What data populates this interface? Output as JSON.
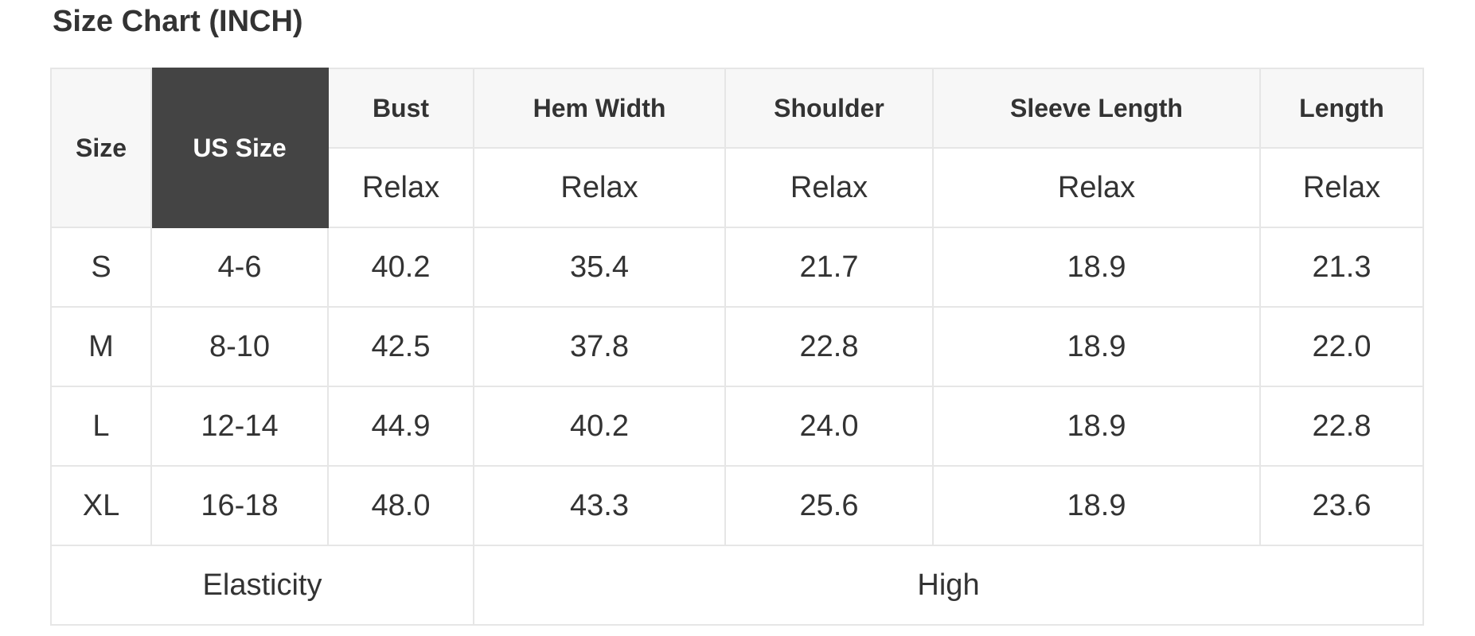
{
  "title": "Size Chart (INCH)",
  "header": {
    "size": "Size",
    "us_size": "US Size",
    "columns": [
      "Bust",
      "Hem Width",
      "Shoulder",
      "Sleeve Length",
      "Length"
    ],
    "sub": [
      "Relax",
      "Relax",
      "Relax",
      "Relax",
      "Relax"
    ]
  },
  "rows": [
    {
      "size": "S",
      "us": "4-6",
      "values": [
        "40.2",
        "35.4",
        "21.7",
        "18.9",
        "21.3"
      ]
    },
    {
      "size": "M",
      "us": "8-10",
      "values": [
        "42.5",
        "37.8",
        "22.8",
        "18.9",
        "22.0"
      ]
    },
    {
      "size": "L",
      "us": "12-14",
      "values": [
        "44.9",
        "40.2",
        "24.0",
        "18.9",
        "22.8"
      ]
    },
    {
      "size": "XL",
      "us": "16-18",
      "values": [
        "48.0",
        "43.3",
        "25.6",
        "18.9",
        "23.6"
      ]
    }
  ],
  "footer": {
    "label": "Elasticity",
    "value": "High"
  },
  "colors": {
    "header_bg": "#f7f7f7",
    "highlight_bg": "#444444",
    "border": "#e6e6e6",
    "text": "#333333"
  }
}
